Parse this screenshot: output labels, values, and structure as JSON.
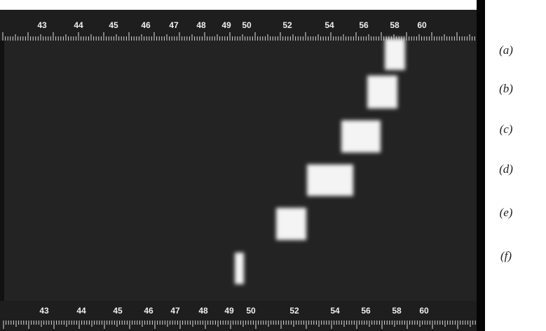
{
  "scale_top": {
    "labels": [
      "43",
      "44",
      "45",
      "46",
      "47",
      "48",
      "49",
      "50",
      "52",
      "54",
      "56",
      "58",
      "60"
    ]
  },
  "scale_bottom": {
    "labels": [
      "43",
      "44",
      "45",
      "46",
      "47",
      "48",
      "49",
      "50",
      "52",
      "54",
      "56",
      "58",
      "60"
    ]
  },
  "panels": [
    {
      "label": "(a)"
    },
    {
      "label": "(b)"
    },
    {
      "label": "(c)"
    },
    {
      "label": "(d)"
    },
    {
      "label": "(e)"
    },
    {
      "label": "(f)"
    }
  ]
}
